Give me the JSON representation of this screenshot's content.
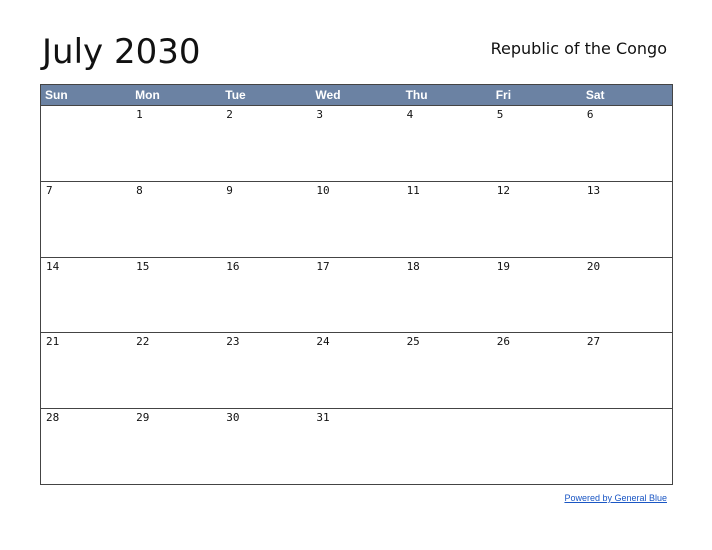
{
  "title": "July 2030",
  "region": "Republic of the Congo",
  "days_of_week": [
    "Sun",
    "Mon",
    "Tue",
    "Wed",
    "Thu",
    "Fri",
    "Sat"
  ],
  "weeks": [
    [
      "",
      "1",
      "2",
      "3",
      "4",
      "5",
      "6"
    ],
    [
      "7",
      "8",
      "9",
      "10",
      "11",
      "12",
      "13"
    ],
    [
      "14",
      "15",
      "16",
      "17",
      "18",
      "19",
      "20"
    ],
    [
      "21",
      "22",
      "23",
      "24",
      "25",
      "26",
      "27"
    ],
    [
      "28",
      "29",
      "30",
      "31",
      "",
      "",
      ""
    ]
  ],
  "footer": {
    "powered_by": "Powered by General Blue"
  },
  "colors": {
    "header_bg": "#6b82a3",
    "link": "#1a56c4"
  }
}
